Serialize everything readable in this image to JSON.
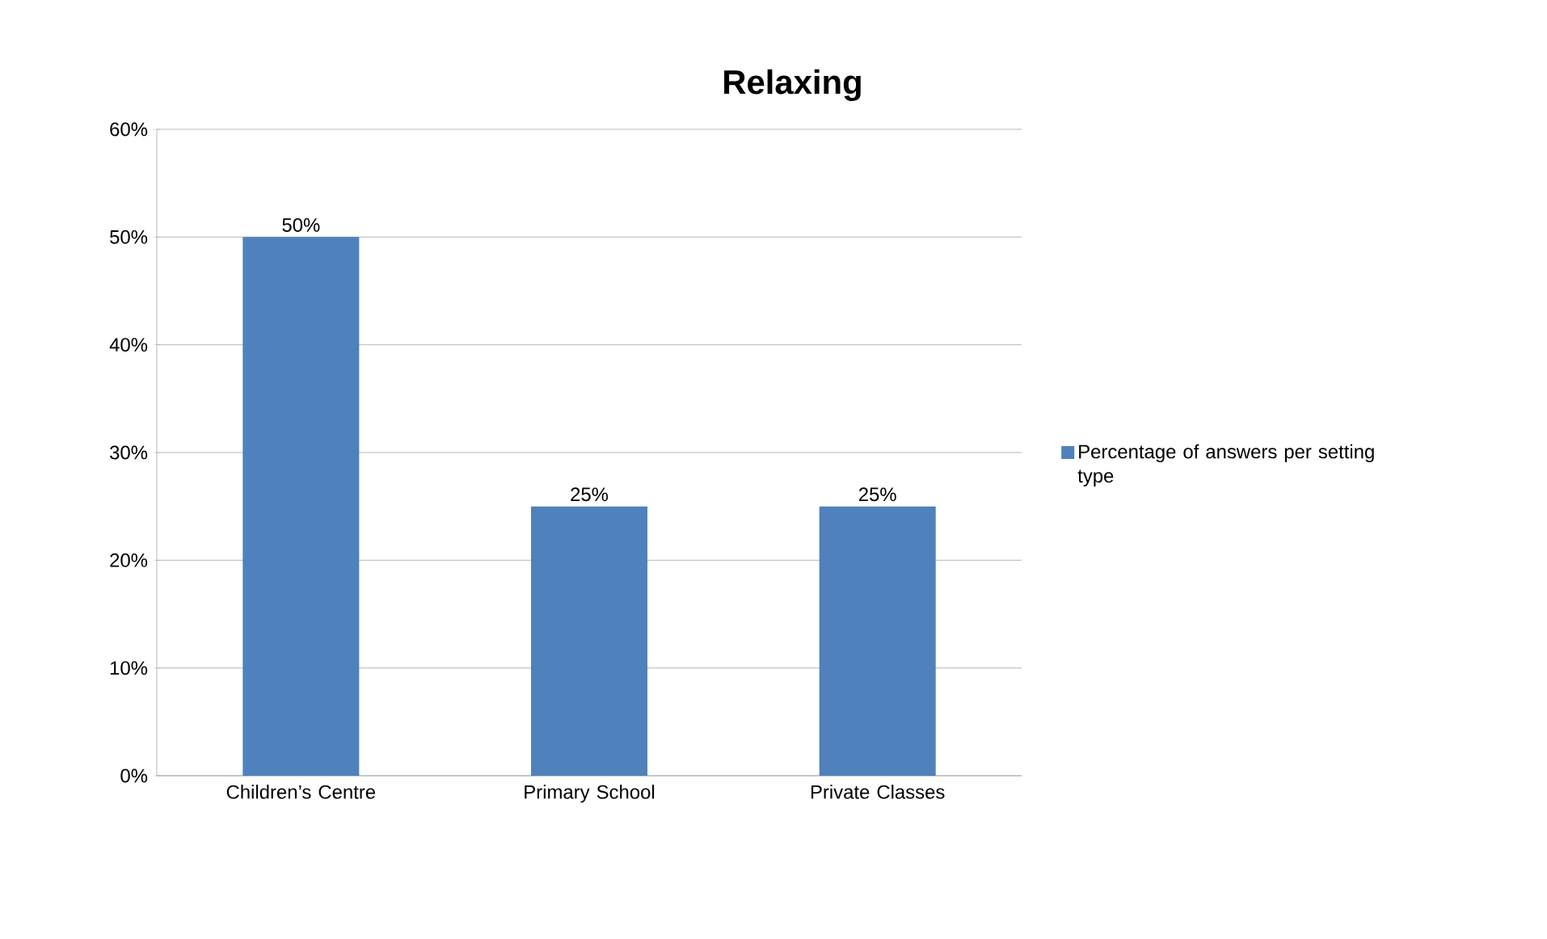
{
  "chart_data": {
    "type": "bar",
    "title": "Relaxing",
    "categories": [
      "Children’s Centre",
      "Primary School",
      "Private Classes"
    ],
    "series": [
      {
        "name": "Percentage of answers per setting type",
        "color": "#4f81bd",
        "values": [
          50,
          25,
          25
        ],
        "value_labels": [
          "50%",
          "25%",
          "25%"
        ]
      }
    ],
    "ylim": [
      0,
      60
    ],
    "yticks": [
      {
        "value": 0,
        "label": "0%"
      },
      {
        "value": 10,
        "label": "10%"
      },
      {
        "value": 20,
        "label": "20%"
      },
      {
        "value": 30,
        "label": "30%"
      },
      {
        "value": 40,
        "label": "40%"
      },
      {
        "value": 50,
        "label": "50%"
      },
      {
        "value": 60,
        "label": "60%"
      }
    ],
    "grid": "y",
    "legend": "right"
  }
}
